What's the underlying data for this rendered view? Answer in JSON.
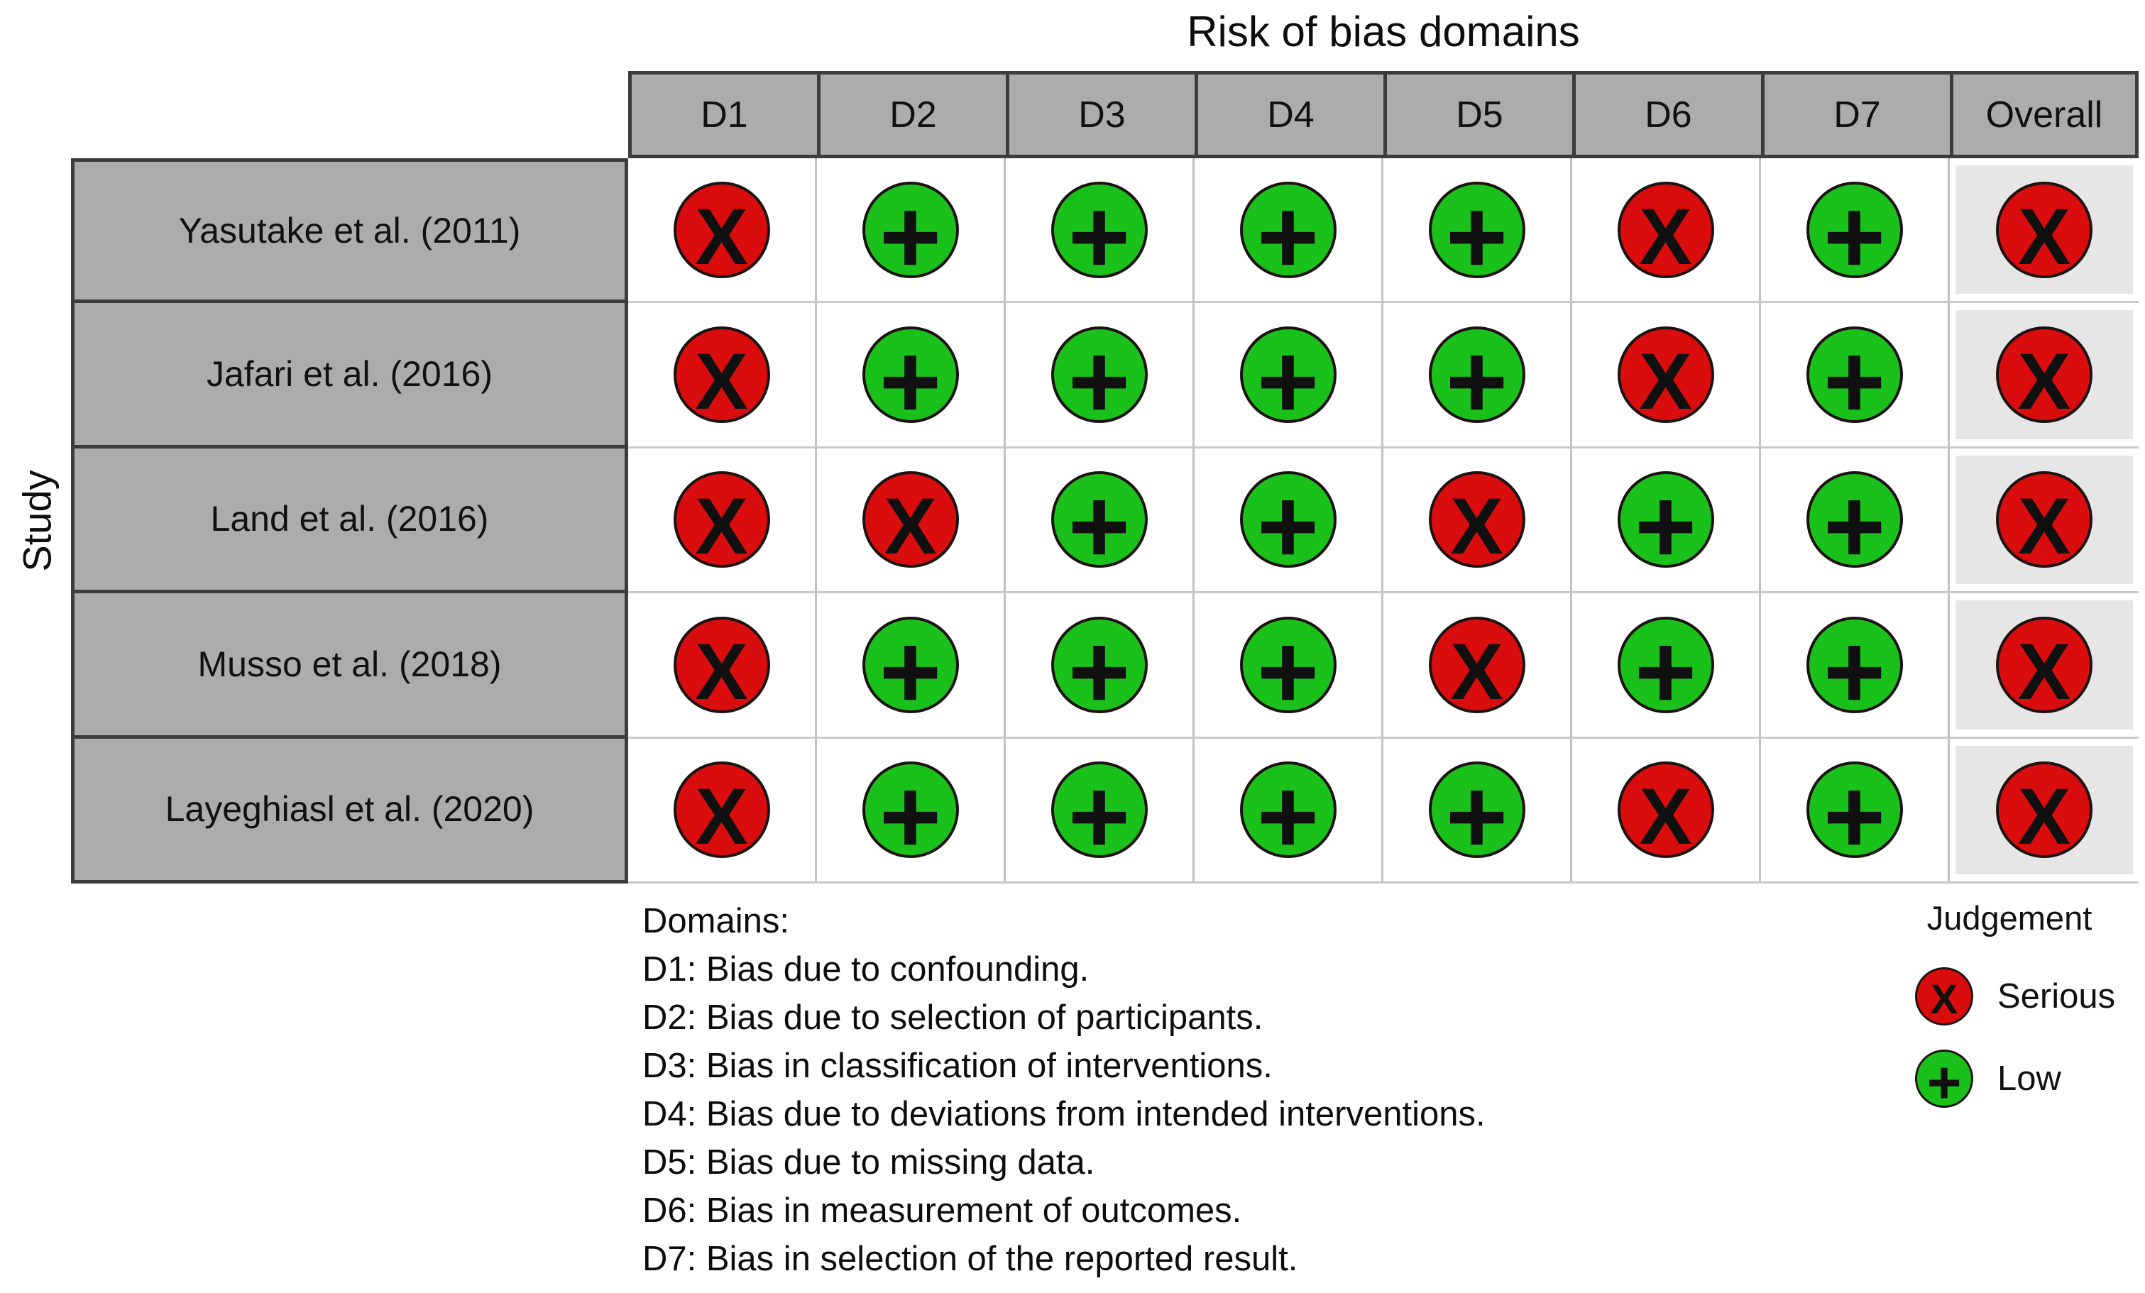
{
  "title": "Risk of bias domains",
  "axis_label": "Study",
  "columns": [
    "D1",
    "D2",
    "D3",
    "D4",
    "D5",
    "D6",
    "D7",
    "Overall"
  ],
  "studies": [
    {
      "name": "Yasutake et al. (2011)",
      "judgements": [
        "serious",
        "low",
        "low",
        "low",
        "low",
        "serious",
        "low",
        "serious"
      ]
    },
    {
      "name": "Jafari et al. (2016)",
      "judgements": [
        "serious",
        "low",
        "low",
        "low",
        "low",
        "serious",
        "low",
        "serious"
      ]
    },
    {
      "name": "Land et al. (2016)",
      "judgements": [
        "serious",
        "serious",
        "low",
        "low",
        "serious",
        "low",
        "low",
        "serious"
      ]
    },
    {
      "name": "Musso et al. (2018)",
      "judgements": [
        "serious",
        "low",
        "low",
        "low",
        "serious",
        "low",
        "low",
        "serious"
      ]
    },
    {
      "name": "Layeghiasl et al. (2020)",
      "judgements": [
        "serious",
        "low",
        "low",
        "low",
        "low",
        "serious",
        "low",
        "serious"
      ]
    }
  ],
  "judgement_styles": {
    "serious": {
      "label": "Serious",
      "symbol": "X",
      "color": "#d90d0d"
    },
    "low": {
      "label": "Low",
      "symbol": "+",
      "color": "#1ac11a"
    }
  },
  "domains_legend": {
    "heading": "Domains:",
    "items": [
      "D1: Bias due to confounding.",
      "D2: Bias due to selection of participants.",
      "D3: Bias in classification of interventions.",
      "D4: Bias due to deviations from intended interventions.",
      "D5: Bias due to missing data.",
      "D6: Bias in measurement of outcomes.",
      "D7: Bias in selection of the reported result."
    ]
  },
  "judgement_legend": {
    "heading": "Judgement",
    "items": [
      {
        "key": "serious",
        "label": "Serious"
      },
      {
        "key": "low",
        "label": "Low"
      }
    ]
  },
  "colors": {
    "serious_red": "#d90d0d",
    "low_green": "#1ac11a",
    "header_gray": "#acacac",
    "dark_border": "#3c3c3c",
    "overall_panel_gray": "#e6e6e6",
    "grid_line_gray": "#c2c2c2",
    "background": "#ffffff"
  },
  "chart_data": {
    "type": "table",
    "title": "Risk of bias domains",
    "x_categories": [
      "D1",
      "D2",
      "D3",
      "D4",
      "D5",
      "D6",
      "D7",
      "Overall"
    ],
    "y_categories": [
      "Yasutake et al. (2011)",
      "Jafari et al. (2016)",
      "Land et al. (2016)",
      "Musso et al. (2018)",
      "Layeghiasl et al. (2020)"
    ],
    "values": [
      [
        "Serious",
        "Low",
        "Low",
        "Low",
        "Low",
        "Serious",
        "Low",
        "Serious"
      ],
      [
        "Serious",
        "Low",
        "Low",
        "Low",
        "Low",
        "Serious",
        "Low",
        "Serious"
      ],
      [
        "Serious",
        "Serious",
        "Low",
        "Low",
        "Serious",
        "Low",
        "Low",
        "Serious"
      ],
      [
        "Serious",
        "Low",
        "Low",
        "Low",
        "Serious",
        "Low",
        "Low",
        "Serious"
      ],
      [
        "Serious",
        "Low",
        "Low",
        "Low",
        "Low",
        "Serious",
        "Low",
        "Serious"
      ]
    ],
    "legend": {
      "Serious": "red circle with X",
      "Low": "green circle with +"
    },
    "legend_position": "bottom-right",
    "grid": true
  }
}
